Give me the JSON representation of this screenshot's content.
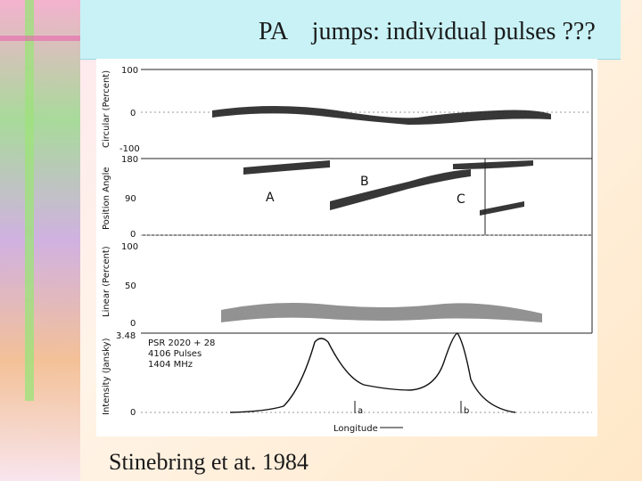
{
  "slide": {
    "title": "PA    jumps: individual pulses ???",
    "caption": "Stinebring et at. 1984"
  },
  "figure": {
    "panels": [
      {
        "ylabel": "Circular (Percent)",
        "ticks": [
          "100",
          "0",
          "-100"
        ]
      },
      {
        "ylabel": "Position Angle",
        "ticks": [
          "180",
          "90",
          "0"
        ]
      },
      {
        "ylabel": "Linear (Percent)",
        "ticks": [
          "100",
          "50",
          "0"
        ]
      },
      {
        "ylabel": "Intensity (Jansky)",
        "ticks": [
          "3.48",
          "0"
        ]
      }
    ],
    "mode_labels": [
      "A",
      "B",
      "C"
    ],
    "legend_lines": [
      "PSR 2020 + 28",
      "4106 Pulses",
      "1404 MHz"
    ],
    "markers": [
      "a",
      "b"
    ],
    "xlabel": "Longitude"
  }
}
